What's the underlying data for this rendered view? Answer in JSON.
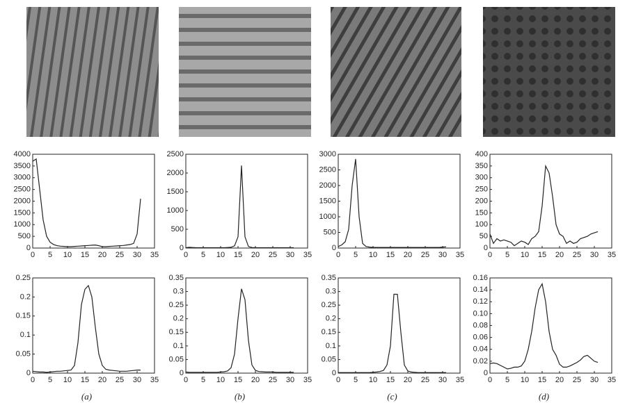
{
  "chart_data": [
    {
      "type": "line",
      "xlim": [
        0,
        35
      ],
      "xticks": [
        0,
        5,
        10,
        15,
        20,
        25,
        30,
        35
      ],
      "ylim": [
        0,
        4000
      ],
      "yticks": [
        0,
        500,
        1000,
        1500,
        2000,
        2500,
        3000,
        3500,
        4000
      ],
      "color": "#222222",
      "x": [
        0,
        1,
        2,
        3,
        4,
        5,
        6,
        7,
        8,
        9,
        10,
        11,
        12,
        13,
        14,
        15,
        16,
        17,
        18,
        19,
        20,
        21,
        22,
        23,
        24,
        25,
        26,
        27,
        28,
        29,
        30,
        31
      ],
      "values": [
        3700,
        3800,
        2500,
        1200,
        500,
        250,
        150,
        100,
        80,
        70,
        60,
        60,
        70,
        80,
        90,
        100,
        110,
        120,
        130,
        100,
        60,
        60,
        70,
        80,
        90,
        100,
        110,
        130,
        150,
        200,
        600,
        2100
      ]
    },
    {
      "type": "line",
      "xlim": [
        0,
        35
      ],
      "xticks": [
        0,
        5,
        10,
        15,
        20,
        25,
        30,
        35
      ],
      "ylim": [
        0,
        2500
      ],
      "yticks": [
        0,
        500,
        1000,
        1500,
        2000,
        2500
      ],
      "color": "#222222",
      "x": [
        0,
        1,
        2,
        3,
        4,
        5,
        6,
        7,
        8,
        9,
        10,
        11,
        12,
        13,
        14,
        15,
        16,
        17,
        18,
        19,
        20,
        21,
        22,
        23,
        24,
        25,
        26,
        27,
        28,
        29,
        30,
        31
      ],
      "values": [
        10,
        20,
        15,
        10,
        10,
        10,
        10,
        10,
        10,
        10,
        10,
        10,
        15,
        20,
        60,
        300,
        2200,
        300,
        40,
        15,
        10,
        10,
        10,
        10,
        10,
        10,
        10,
        10,
        10,
        10,
        10,
        10
      ]
    },
    {
      "type": "line",
      "xlim": [
        0,
        35
      ],
      "xticks": [
        0,
        5,
        10,
        15,
        20,
        25,
        30,
        35
      ],
      "ylim": [
        0,
        3000
      ],
      "yticks": [
        0,
        500,
        1000,
        1500,
        2000,
        2500,
        3000
      ],
      "color": "#222222",
      "x": [
        0,
        1,
        2,
        3,
        4,
        5,
        6,
        7,
        8,
        9,
        10,
        11,
        12,
        13,
        14,
        15,
        16,
        17,
        18,
        19,
        20,
        21,
        22,
        23,
        24,
        25,
        26,
        27,
        28,
        29,
        30,
        31
      ],
      "values": [
        50,
        100,
        200,
        600,
        2000,
        2850,
        1000,
        150,
        50,
        30,
        20,
        20,
        20,
        20,
        20,
        20,
        20,
        20,
        20,
        20,
        20,
        20,
        20,
        20,
        20,
        20,
        20,
        20,
        20,
        20,
        30,
        40
      ]
    },
    {
      "type": "line",
      "xlim": [
        0,
        35
      ],
      "xticks": [
        0,
        5,
        10,
        15,
        20,
        25,
        30,
        35
      ],
      "ylim": [
        0,
        400
      ],
      "yticks": [
        0,
        50,
        100,
        150,
        200,
        250,
        300,
        350,
        400
      ],
      "color": "#222222",
      "x": [
        0,
        1,
        2,
        3,
        4,
        5,
        6,
        7,
        8,
        9,
        10,
        11,
        12,
        13,
        14,
        15,
        16,
        17,
        18,
        19,
        20,
        21,
        22,
        23,
        24,
        25,
        26,
        27,
        28,
        29,
        30,
        31
      ],
      "values": [
        60,
        20,
        40,
        30,
        35,
        30,
        25,
        10,
        20,
        30,
        25,
        15,
        40,
        50,
        70,
        180,
        350,
        320,
        220,
        100,
        60,
        50,
        20,
        30,
        20,
        25,
        40,
        45,
        50,
        60,
        65,
        70
      ]
    },
    {
      "type": "line",
      "xlim": [
        0,
        35
      ],
      "xticks": [
        0,
        5,
        10,
        15,
        20,
        25,
        30,
        35
      ],
      "ylim": [
        0,
        0.25
      ],
      "yticks": [
        0,
        0.05,
        0.1,
        0.15,
        0.2,
        0.25
      ],
      "color": "#222222",
      "x": [
        0,
        1,
        2,
        3,
        4,
        5,
        6,
        7,
        8,
        9,
        10,
        11,
        12,
        13,
        14,
        15,
        16,
        17,
        18,
        19,
        20,
        21,
        22,
        23,
        24,
        25,
        26,
        27,
        28,
        29,
        30,
        31
      ],
      "values": [
        0.005,
        0.004,
        0.003,
        0.003,
        0.002,
        0.003,
        0.004,
        0.005,
        0.005,
        0.006,
        0.007,
        0.008,
        0.02,
        0.08,
        0.18,
        0.22,
        0.23,
        0.2,
        0.12,
        0.05,
        0.02,
        0.01,
        0.008,
        0.007,
        0.006,
        0.005,
        0.005,
        0.005,
        0.006,
        0.007,
        0.008,
        0.008
      ]
    },
    {
      "type": "line",
      "xlim": [
        0,
        35
      ],
      "xticks": [
        0,
        5,
        10,
        15,
        20,
        25,
        30,
        35
      ],
      "ylim": [
        0,
        0.35
      ],
      "yticks": [
        0,
        0.05,
        0.1,
        0.15,
        0.2,
        0.25,
        0.3,
        0.35
      ],
      "color": "#222222",
      "x": [
        0,
        1,
        2,
        3,
        4,
        5,
        6,
        7,
        8,
        9,
        10,
        11,
        12,
        13,
        14,
        15,
        16,
        17,
        18,
        19,
        20,
        21,
        22,
        23,
        24,
        25,
        26,
        27,
        28,
        29,
        30,
        31
      ],
      "values": [
        0.004,
        0.003,
        0.003,
        0.003,
        0.003,
        0.003,
        0.003,
        0.003,
        0.003,
        0.003,
        0.004,
        0.005,
        0.008,
        0.02,
        0.07,
        0.2,
        0.31,
        0.27,
        0.12,
        0.03,
        0.01,
        0.006,
        0.005,
        0.004,
        0.004,
        0.004,
        0.003,
        0.003,
        0.003,
        0.003,
        0.003,
        0.003
      ]
    },
    {
      "type": "line",
      "xlim": [
        0,
        35
      ],
      "xticks": [
        0,
        5,
        10,
        15,
        20,
        25,
        30,
        35
      ],
      "ylim": [
        0,
        0.35
      ],
      "yticks": [
        0,
        0.05,
        0.1,
        0.15,
        0.2,
        0.25,
        0.3,
        0.35
      ],
      "color": "#222222",
      "x": [
        0,
        1,
        2,
        3,
        4,
        5,
        6,
        7,
        8,
        9,
        10,
        11,
        12,
        13,
        14,
        15,
        16,
        17,
        18,
        19,
        20,
        21,
        22,
        23,
        24,
        25,
        26,
        27,
        28,
        29,
        30,
        31
      ],
      "values": [
        0.002,
        0.002,
        0.002,
        0.002,
        0.002,
        0.002,
        0.002,
        0.002,
        0.002,
        0.002,
        0.003,
        0.004,
        0.006,
        0.01,
        0.03,
        0.1,
        0.29,
        0.29,
        0.15,
        0.03,
        0.008,
        0.004,
        0.003,
        0.002,
        0.002,
        0.002,
        0.002,
        0.002,
        0.002,
        0.002,
        0.002,
        0.002
      ]
    },
    {
      "type": "line",
      "xlim": [
        0,
        35
      ],
      "xticks": [
        0,
        5,
        10,
        15,
        20,
        25,
        30,
        35
      ],
      "ylim": [
        0,
        0.16
      ],
      "yticks": [
        0,
        0.02,
        0.04,
        0.06,
        0.08,
        {
          "value": 0.1,
          "label": "0.10"
        },
        0.12,
        0.14,
        0.16
      ],
      "color": "#222222",
      "x": [
        0,
        1,
        2,
        3,
        4,
        5,
        6,
        7,
        8,
        9,
        10,
        11,
        12,
        13,
        14,
        15,
        16,
        17,
        18,
        19,
        20,
        21,
        22,
        23,
        24,
        25,
        26,
        27,
        28,
        29,
        30,
        31
      ],
      "values": [
        0.016,
        0.017,
        0.016,
        0.013,
        0.01,
        0.007,
        0.008,
        0.01,
        0.01,
        0.012,
        0.02,
        0.04,
        0.07,
        0.11,
        0.14,
        0.15,
        0.12,
        0.07,
        0.04,
        0.03,
        0.015,
        0.01,
        0.01,
        0.012,
        0.015,
        0.018,
        0.022,
        0.028,
        0.03,
        0.025,
        0.02,
        0.018
      ]
    }
  ],
  "captions": [
    "(a)",
    "(b)",
    "(c)",
    "(d)"
  ]
}
